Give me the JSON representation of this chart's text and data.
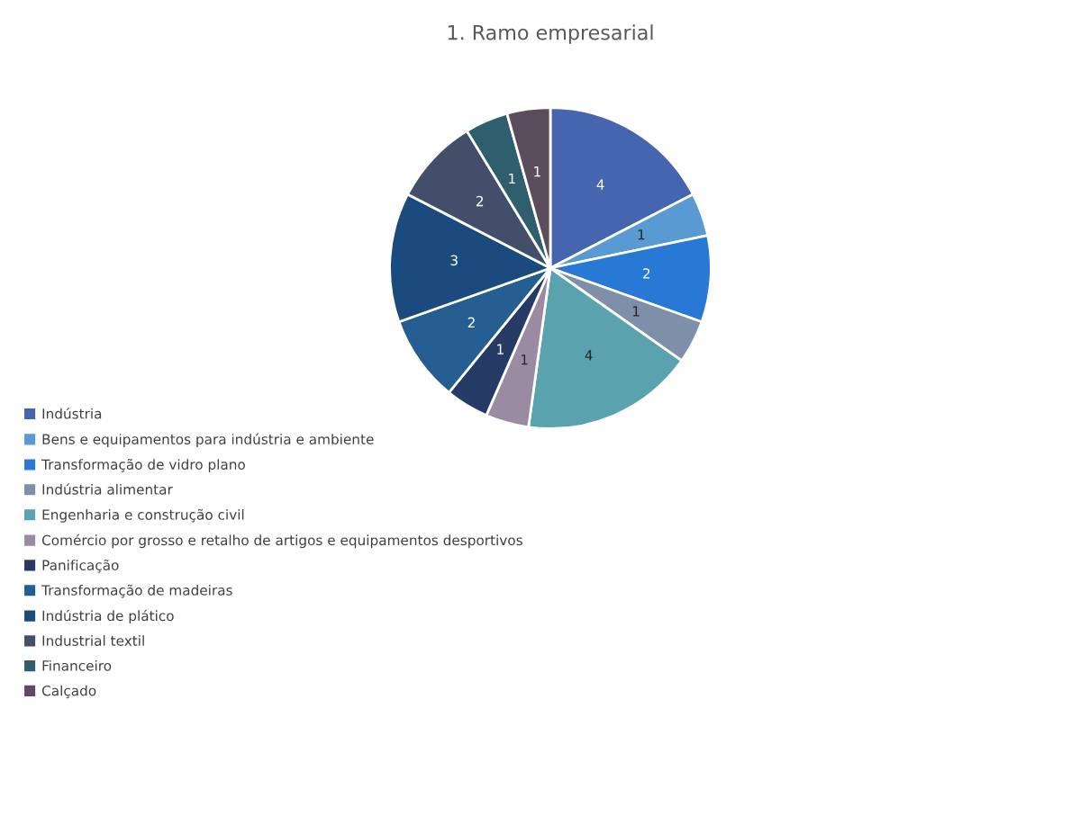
{
  "chart_data": {
    "type": "pie",
    "title": "1. Ramo empresarial",
    "categories": [
      "Indústria",
      "Bens e equipamentos para indústria e ambiente",
      "Transformação de vidro plano",
      "Indústria alimentar",
      "Engenharia e construção civil",
      "Comércio por grosso e retalho de artigos e equipamentos desportivos",
      "Panificação",
      "Transformação de madeiras",
      "Indústria de plático",
      "Industrial textil",
      "Financeiro",
      "Calçado"
    ],
    "values": [
      4,
      1,
      2,
      1,
      4,
      1,
      1,
      2,
      3,
      2,
      1,
      1
    ],
    "colors": [
      "#4565ae",
      "#5a9ad2",
      "#2878d6",
      "#7f8fa9",
      "#5aa2ae",
      "#9a8aa2",
      "#263a66",
      "#255e91",
      "#1b4b7e",
      "#434f6a",
      "#2f5f6c",
      "#5b4d5e"
    ],
    "data_labels": true,
    "legend": "bottom left"
  }
}
